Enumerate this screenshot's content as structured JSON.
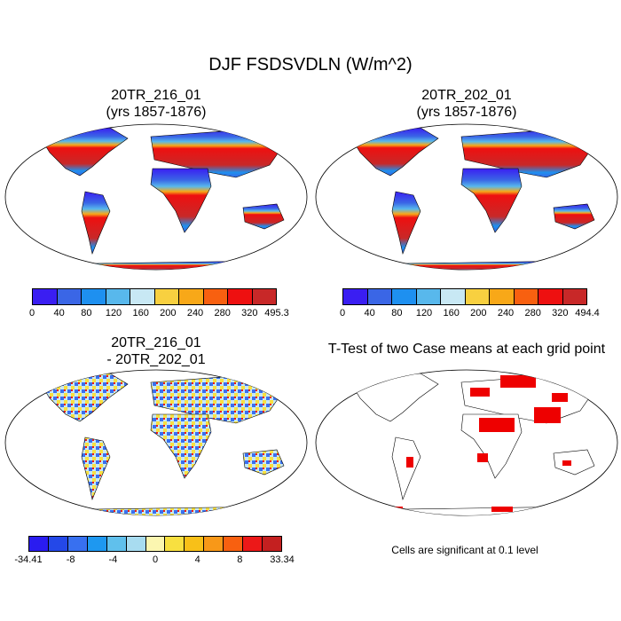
{
  "figure": {
    "title": "DJF FSDSVDLN (W/m^2)",
    "note": "Cells are significant at 0.1 level"
  },
  "panels": [
    {
      "title_line1": "20TR_216_01",
      "title_line2": "(yrs 1857-1876)",
      "colorbar": {
        "colors": [
          "#3a1ef2",
          "#3a66e6",
          "#1e90f0",
          "#58b8ec",
          "#c8e8f4",
          "#f8d040",
          "#f8a818",
          "#f86010",
          "#ee1010",
          "#c82828"
        ],
        "labels": [
          "0",
          "40",
          "80",
          "120",
          "160",
          "200",
          "240",
          "280",
          "320",
          "495.3"
        ]
      }
    },
    {
      "title_line1": "20TR_202_01",
      "title_line2": "(yrs 1857-1876)",
      "colorbar": {
        "colors": [
          "#3a1ef2",
          "#3a66e6",
          "#1e90f0",
          "#58b8ec",
          "#c8e8f4",
          "#f8d040",
          "#f8a818",
          "#f86010",
          "#ee1010",
          "#c82828"
        ],
        "labels": [
          "0",
          "40",
          "80",
          "120",
          "160",
          "200",
          "240",
          "280",
          "320",
          "494.4"
        ]
      }
    },
    {
      "title_line1": "20TR_216_01",
      "title_line2": "- 20TR_202_01",
      "colorbar": {
        "colors": [
          "#2a1cf0",
          "#2448e8",
          "#3870f0",
          "#1e98f0",
          "#60c0ec",
          "#a8dcf0",
          "#fbf6b0",
          "#f8e040",
          "#f8c018",
          "#f89818",
          "#f86010",
          "#ec1818",
          "#c42020"
        ],
        "labels": [
          "-34.41",
          "-8",
          "-4",
          "0",
          "4",
          "8",
          "33.34"
        ]
      }
    },
    {
      "title_line1": "T-Test of two Case means at each grid point",
      "title_line2": ""
    }
  ]
}
